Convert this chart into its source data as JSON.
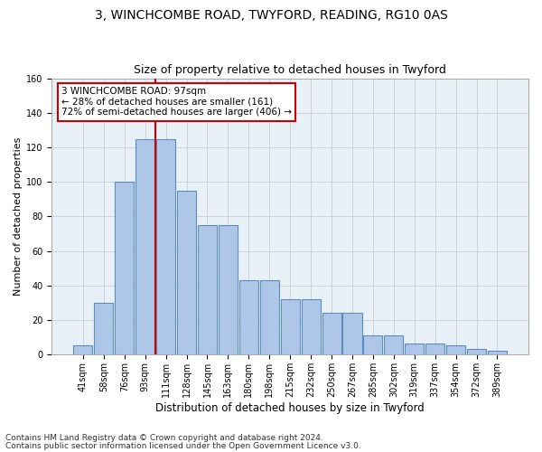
{
  "title1": "3, WINCHCOMBE ROAD, TWYFORD, READING, RG10 0AS",
  "title2": "Size of property relative to detached houses in Twyford",
  "xlabel": "Distribution of detached houses by size in Twyford",
  "ylabel": "Number of detached properties",
  "categories": [
    "41sqm",
    "58sqm",
    "76sqm",
    "93sqm",
    "111sqm",
    "128sqm",
    "145sqm",
    "163sqm",
    "180sqm",
    "198sqm",
    "215sqm",
    "232sqm",
    "250sqm",
    "267sqm",
    "285sqm",
    "302sqm",
    "319sqm",
    "337sqm",
    "354sqm",
    "372sqm",
    "389sqm"
  ],
  "bar_heights": [
    5,
    30,
    100,
    125,
    125,
    95,
    75,
    75,
    43,
    43,
    32,
    32,
    24,
    24,
    11,
    11,
    6,
    6,
    5,
    3,
    2
  ],
  "bar_color": "#aec6e8",
  "bar_edge_color": "#5b8db8",
  "vline_color": "#cc0000",
  "vline_pos": 3.5,
  "annotation_text": "3 WINCHCOMBE ROAD: 97sqm\n← 28% of detached houses are smaller (161)\n72% of semi-detached houses are larger (406) →",
  "annotation_box_color": "#ffffff",
  "annotation_box_edge": "#cc0000",
  "ylim": [
    0,
    160
  ],
  "yticks": [
    0,
    20,
    40,
    60,
    80,
    100,
    120,
    140,
    160
  ],
  "grid_color": "#cccccc",
  "bg_color": "#e8f0f8",
  "footer1": "Contains HM Land Registry data © Crown copyright and database right 2024.",
  "footer2": "Contains public sector information licensed under the Open Government Licence v3.0.",
  "title_fontsize": 10,
  "subtitle_fontsize": 9,
  "ylabel_fontsize": 8,
  "xlabel_fontsize": 8.5,
  "tick_fontsize": 7,
  "annotation_fontsize": 7.5,
  "footer_fontsize": 6.5
}
